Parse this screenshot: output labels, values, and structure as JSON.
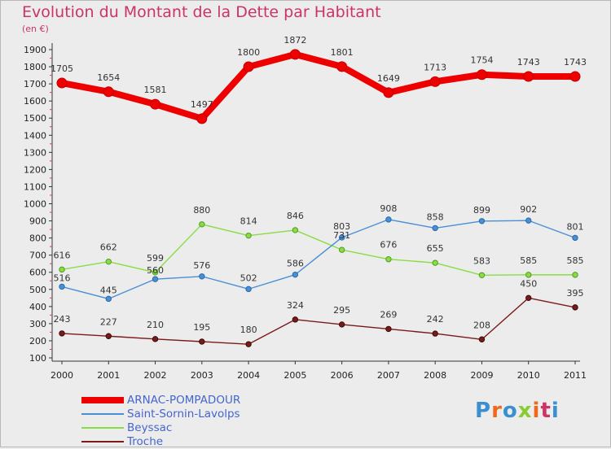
{
  "title": "Evolution du Montant de la Dette par Habitant",
  "subtitle": "(en €)",
  "logo": "Proxiti",
  "chart_data": {
    "type": "line",
    "x": [
      "2000",
      "2001",
      "2002",
      "2003",
      "2004",
      "2005",
      "2006",
      "2007",
      "2008",
      "2009",
      "2010",
      "2011"
    ],
    "ylim": [
      100,
      1900
    ],
    "yticks": [
      100,
      200,
      300,
      400,
      500,
      600,
      700,
      800,
      900,
      1000,
      1100,
      1200,
      1300,
      1400,
      1500,
      1600,
      1700,
      1800,
      1900
    ],
    "grid": false,
    "legend": "bottom-left",
    "series": [
      {
        "name": "ARNAC-POMPADOUR",
        "color": "#ee0000",
        "values": [
          1705,
          1654,
          1581,
          1497,
          1800,
          1872,
          1801,
          1649,
          1713,
          1754,
          1743,
          1743
        ]
      },
      {
        "name": "Saint-Sornin-Lavolps",
        "color": "#4a8ed6",
        "values": [
          516,
          445,
          560,
          576,
          502,
          586,
          803,
          908,
          858,
          899,
          902,
          801
        ]
      },
      {
        "name": "Beyssac",
        "color": "#88dd44",
        "values": [
          616,
          662,
          599,
          880,
          814,
          846,
          731,
          676,
          655,
          583,
          585,
          585
        ]
      },
      {
        "name": "Troche",
        "color": "#7a1a1a",
        "values": [
          243,
          227,
          210,
          195,
          180,
          324,
          295,
          269,
          242,
          208,
          450,
          395
        ]
      }
    ]
  }
}
